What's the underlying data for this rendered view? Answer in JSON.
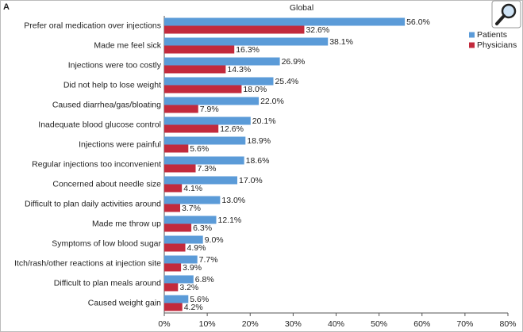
{
  "chart_data": {
    "type": "hbar",
    "panel_label": "A",
    "title": "Global",
    "categories": [
      "Prefer oral medication over injections",
      "Made me feel sick",
      "Injections were too costly",
      "Did not help to lose weight",
      "Caused diarrhea/gas/bloating",
      "Inadequate blood glucose control",
      "Injections were painful",
      "Regular injections too inconvenient",
      "Concerned about needle size",
      "Difficult to plan daily activities around",
      "Made me throw up",
      "Symptoms of low blood sugar",
      "Itch/rash/other reactions at injection site",
      "Difficult to plan meals around",
      "Caused weight gain"
    ],
    "series": [
      {
        "name": "Patients",
        "color": "#5b9bd8",
        "values": [
          56.0,
          38.1,
          26.9,
          25.4,
          22.0,
          20.1,
          18.9,
          18.6,
          17.0,
          13.0,
          12.1,
          9.0,
          7.7,
          6.8,
          5.6
        ],
        "value_labels": [
          "56.0%",
          "38.1%",
          "26.9%",
          "25.4%",
          "22.0%",
          "20.1%",
          "18.9%",
          "18.6%",
          "17.0%",
          "13.0%",
          "12.1%",
          "9.0%",
          "7.7%",
          "6.8%",
          "5.6%"
        ]
      },
      {
        "name": "Physicians",
        "color": "#c22a3c",
        "values": [
          32.6,
          16.3,
          14.3,
          18.0,
          7.9,
          12.6,
          5.6,
          7.3,
          4.1,
          3.7,
          6.3,
          4.9,
          3.9,
          3.2,
          4.2
        ],
        "value_labels": [
          "32.6%",
          "16.3%",
          "14.3%",
          "18.0%",
          "7.9%",
          "12.6%",
          "5.6%",
          "7.3%",
          "4.1%",
          "3.7%",
          "6.3%",
          "4.9%",
          "3.9%",
          "3.2%",
          "4.2%"
        ]
      }
    ],
    "xlim": [
      0,
      80
    ],
    "xticks": [
      {
        "value": 0,
        "label": "0%"
      },
      {
        "value": 10,
        "label": "10%"
      },
      {
        "value": 20,
        "label": "20%"
      },
      {
        "value": 30,
        "label": "30%"
      },
      {
        "value": 40,
        "label": "40%"
      },
      {
        "value": 50,
        "label": "50%"
      },
      {
        "value": 60,
        "label": "60%"
      },
      {
        "value": 70,
        "label": "70%"
      },
      {
        "value": 80,
        "label": "80%"
      }
    ],
    "legend": "top-right"
  }
}
